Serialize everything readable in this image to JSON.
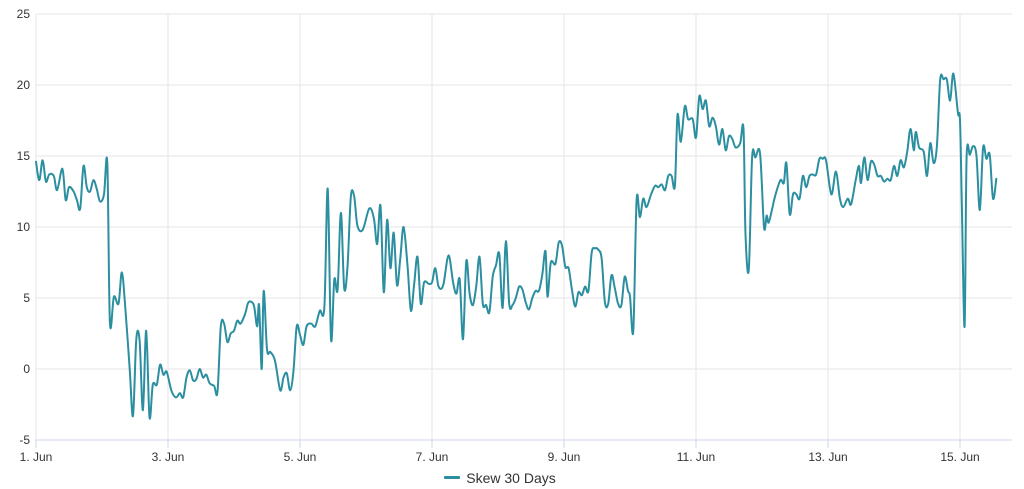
{
  "chart_data": {
    "type": "line",
    "title": "",
    "xlabel": "",
    "ylabel": "",
    "ylim": [
      -5,
      25
    ],
    "yticks": [
      -5,
      0,
      5,
      10,
      15,
      20,
      25
    ],
    "xticks": [
      "1. Jun",
      "3. Jun",
      "5. Jun",
      "7. Jun",
      "9. Jun",
      "11. Jun",
      "13. Jun",
      "15. Jun"
    ],
    "x_range_days": [
      1,
      15.8
    ],
    "grid": true,
    "legend_position": "bottom-center",
    "series": [
      {
        "name": "Skew 30 Days",
        "color": "#2b8fa0",
        "points": [
          [
            1.0,
            14.6
          ],
          [
            1.05,
            13.3
          ],
          [
            1.1,
            14.7
          ],
          [
            1.15,
            13.2
          ],
          [
            1.2,
            13.7
          ],
          [
            1.27,
            13.6
          ],
          [
            1.32,
            12.6
          ],
          [
            1.4,
            14.1
          ],
          [
            1.45,
            11.9
          ],
          [
            1.5,
            12.8
          ],
          [
            1.57,
            12.5
          ],
          [
            1.62,
            11.9
          ],
          [
            1.67,
            11.3
          ],
          [
            1.72,
            14.3
          ],
          [
            1.77,
            12.8
          ],
          [
            1.82,
            12.5
          ],
          [
            1.87,
            13.3
          ],
          [
            1.92,
            12.7
          ],
          [
            1.97,
            11.8
          ],
          [
            2.03,
            12.3
          ],
          [
            2.08,
            14.5
          ],
          [
            2.12,
            3.3
          ],
          [
            2.18,
            5.1
          ],
          [
            2.25,
            4.6
          ],
          [
            2.3,
            6.8
          ],
          [
            2.35,
            4.5
          ],
          [
            2.42,
            0.0
          ],
          [
            2.47,
            -3.3
          ],
          [
            2.52,
            2.1
          ],
          [
            2.57,
            2.0
          ],
          [
            2.62,
            -2.9
          ],
          [
            2.67,
            2.7
          ],
          [
            2.72,
            -3.4
          ],
          [
            2.77,
            -1.1
          ],
          [
            2.83,
            -1.1
          ],
          [
            2.88,
            0.3
          ],
          [
            2.93,
            -0.4
          ],
          [
            2.98,
            -0.2
          ],
          [
            3.05,
            -1.5
          ],
          [
            3.12,
            -2.0
          ],
          [
            3.18,
            -1.7
          ],
          [
            3.23,
            -2.0
          ],
          [
            3.28,
            -0.6
          ],
          [
            3.33,
            -0.1
          ],
          [
            3.38,
            -0.8
          ],
          [
            3.43,
            -0.7
          ],
          [
            3.48,
            0.0
          ],
          [
            3.53,
            -0.6
          ],
          [
            3.58,
            -0.4
          ],
          [
            3.63,
            -1.0
          ],
          [
            3.7,
            -1.2
          ],
          [
            3.75,
            -1.6
          ],
          [
            3.8,
            3.0
          ],
          [
            3.85,
            3.2
          ],
          [
            3.9,
            1.9
          ],
          [
            3.95,
            2.5
          ],
          [
            4.0,
            2.7
          ],
          [
            4.05,
            3.4
          ],
          [
            4.1,
            3.2
          ],
          [
            4.17,
            3.9
          ],
          [
            4.22,
            4.7
          ],
          [
            4.3,
            4.5
          ],
          [
            4.35,
            3.0
          ],
          [
            4.38,
            4.5
          ],
          [
            4.42,
            0.0
          ],
          [
            4.45,
            5.5
          ],
          [
            4.5,
            1.4
          ],
          [
            4.55,
            1.2
          ],
          [
            4.62,
            0.6
          ],
          [
            4.7,
            -1.5
          ],
          [
            4.75,
            -0.6
          ],
          [
            4.8,
            -0.3
          ],
          [
            4.85,
            -1.5
          ],
          [
            4.9,
            -0.2
          ],
          [
            4.95,
            3.0
          ],
          [
            5.0,
            2.4
          ],
          [
            5.05,
            1.7
          ],
          [
            5.1,
            3.0
          ],
          [
            5.17,
            3.2
          ],
          [
            5.23,
            3.0
          ],
          [
            5.3,
            4.1
          ],
          [
            5.37,
            4.4
          ],
          [
            5.42,
            12.7
          ],
          [
            5.47,
            2.1
          ],
          [
            5.52,
            6.3
          ],
          [
            5.57,
            5.6
          ],
          [
            5.62,
            11.0
          ],
          [
            5.67,
            5.7
          ],
          [
            5.72,
            7.2
          ],
          [
            5.77,
            12.1
          ],
          [
            5.82,
            12.2
          ],
          [
            5.87,
            10.1
          ],
          [
            5.95,
            9.8
          ],
          [
            6.05,
            11.3
          ],
          [
            6.12,
            10.6
          ],
          [
            6.17,
            8.8
          ],
          [
            6.22,
            11.5
          ],
          [
            6.27,
            5.4
          ],
          [
            6.32,
            10.5
          ],
          [
            6.37,
            7.1
          ],
          [
            6.42,
            9.6
          ],
          [
            6.47,
            5.9
          ],
          [
            6.52,
            7.8
          ],
          [
            6.57,
            10.0
          ],
          [
            6.63,
            7.2
          ],
          [
            6.68,
            4.1
          ],
          [
            6.73,
            6.0
          ],
          [
            6.78,
            7.9
          ],
          [
            6.83,
            4.6
          ],
          [
            6.88,
            6.1
          ],
          [
            6.95,
            6.0
          ],
          [
            7.0,
            6.1
          ],
          [
            7.05,
            7.1
          ],
          [
            7.1,
            5.8
          ],
          [
            7.17,
            5.9
          ],
          [
            7.25,
            8.0
          ],
          [
            7.32,
            6.1
          ],
          [
            7.37,
            5.3
          ],
          [
            7.42,
            6.3
          ],
          [
            7.47,
            2.1
          ],
          [
            7.52,
            7.6
          ],
          [
            7.57,
            5.3
          ],
          [
            7.62,
            4.5
          ],
          [
            7.67,
            5.8
          ],
          [
            7.72,
            7.9
          ],
          [
            7.77,
            4.6
          ],
          [
            7.82,
            4.5
          ],
          [
            7.87,
            4.0
          ],
          [
            7.92,
            6.5
          ],
          [
            7.97,
            7.3
          ],
          [
            8.02,
            8.1
          ],
          [
            8.07,
            4.3
          ],
          [
            8.12,
            9.0
          ],
          [
            8.17,
            4.6
          ],
          [
            8.22,
            4.5
          ],
          [
            8.27,
            5.0
          ],
          [
            8.32,
            5.8
          ],
          [
            8.37,
            5.6
          ],
          [
            8.42,
            4.7
          ],
          [
            8.47,
            4.2
          ],
          [
            8.52,
            5.0
          ],
          [
            8.57,
            5.5
          ],
          [
            8.62,
            5.5
          ],
          [
            8.67,
            6.6
          ],
          [
            8.72,
            8.3
          ],
          [
            8.75,
            5.1
          ],
          [
            8.8,
            7.5
          ],
          [
            8.87,
            7.4
          ],
          [
            8.92,
            8.9
          ],
          [
            8.97,
            8.7
          ],
          [
            9.02,
            7.2
          ],
          [
            9.07,
            7.1
          ],
          [
            9.12,
            5.6
          ],
          [
            9.17,
            4.4
          ],
          [
            9.22,
            5.4
          ],
          [
            9.27,
            5.2
          ],
          [
            9.32,
            5.8
          ],
          [
            9.37,
            5.5
          ],
          [
            9.42,
            8.2
          ],
          [
            9.47,
            8.5
          ],
          [
            9.52,
            8.4
          ],
          [
            9.57,
            7.8
          ],
          [
            9.62,
            4.7
          ],
          [
            9.67,
            4.6
          ],
          [
            9.72,
            6.6
          ],
          [
            9.77,
            5.7
          ],
          [
            9.82,
            4.6
          ],
          [
            9.87,
            4.5
          ],
          [
            9.92,
            6.5
          ],
          [
            9.97,
            5.5
          ],
          [
            10.0,
            5.1
          ],
          [
            10.05,
            2.7
          ],
          [
            10.1,
            11.9
          ],
          [
            10.15,
            10.7
          ],
          [
            10.2,
            12.0
          ],
          [
            10.25,
            11.4
          ],
          [
            10.32,
            12.3
          ],
          [
            10.38,
            12.9
          ],
          [
            10.43,
            12.8
          ],
          [
            10.48,
            13.0
          ],
          [
            10.53,
            12.6
          ],
          [
            10.58,
            13.6
          ],
          [
            10.63,
            13.6
          ],
          [
            10.68,
            12.9
          ],
          [
            10.72,
            17.9
          ],
          [
            10.77,
            16.0
          ],
          [
            10.83,
            18.5
          ],
          [
            10.88,
            17.6
          ],
          [
            10.95,
            17.6
          ],
          [
            11.0,
            16.3
          ],
          [
            11.05,
            19.2
          ],
          [
            11.1,
            18.3
          ],
          [
            11.15,
            18.9
          ],
          [
            11.2,
            17.1
          ],
          [
            11.25,
            17.7
          ],
          [
            11.3,
            17.1
          ],
          [
            11.35,
            15.8
          ],
          [
            11.4,
            16.9
          ],
          [
            11.45,
            15.4
          ],
          [
            11.5,
            16.4
          ],
          [
            11.55,
            16.2
          ],
          [
            11.6,
            15.6
          ],
          [
            11.67,
            15.9
          ],
          [
            11.72,
            16.9
          ],
          [
            11.75,
            9.5
          ],
          [
            11.8,
            7.0
          ],
          [
            11.85,
            14.9
          ],
          [
            11.9,
            14.9
          ],
          [
            11.97,
            15.2
          ],
          [
            12.03,
            10.0
          ],
          [
            12.07,
            10.8
          ],
          [
            12.1,
            10.3
          ],
          [
            12.15,
            11.2
          ],
          [
            12.2,
            12.2
          ],
          [
            12.28,
            13.3
          ],
          [
            12.33,
            13.1
          ],
          [
            12.37,
            14.5
          ],
          [
            12.42,
            10.9
          ],
          [
            12.47,
            12.3
          ],
          [
            12.52,
            12.3
          ],
          [
            12.57,
            12.0
          ],
          [
            12.62,
            13.6
          ],
          [
            12.67,
            12.8
          ],
          [
            12.72,
            13.6
          ],
          [
            12.77,
            13.7
          ],
          [
            12.82,
            13.7
          ],
          [
            12.87,
            14.8
          ],
          [
            12.92,
            14.8
          ],
          [
            12.97,
            14.7
          ],
          [
            13.05,
            12.3
          ],
          [
            13.12,
            13.9
          ],
          [
            13.18,
            12.0
          ],
          [
            13.23,
            11.4
          ],
          [
            13.3,
            12.0
          ],
          [
            13.35,
            11.6
          ],
          [
            13.42,
            13.3
          ],
          [
            13.47,
            14.3
          ],
          [
            13.5,
            13.1
          ],
          [
            13.55,
            14.9
          ],
          [
            13.6,
            13.3
          ],
          [
            13.65,
            14.6
          ],
          [
            13.7,
            14.4
          ],
          [
            13.75,
            13.6
          ],
          [
            13.8,
            13.6
          ],
          [
            13.85,
            13.2
          ],
          [
            13.9,
            13.4
          ],
          [
            13.95,
            13.3
          ],
          [
            14.0,
            14.3
          ],
          [
            14.05,
            13.6
          ],
          [
            14.1,
            14.7
          ],
          [
            14.15,
            14.2
          ],
          [
            14.2,
            15.3
          ],
          [
            14.25,
            16.9
          ],
          [
            14.3,
            15.4
          ],
          [
            14.33,
            16.7
          ],
          [
            14.38,
            15.6
          ],
          [
            14.45,
            15.3
          ],
          [
            14.5,
            13.6
          ],
          [
            14.55,
            15.9
          ],
          [
            14.6,
            14.5
          ],
          [
            14.65,
            15.7
          ],
          [
            14.7,
            20.4
          ],
          [
            14.75,
            20.4
          ],
          [
            14.8,
            20.4
          ],
          [
            14.85,
            18.9
          ],
          [
            14.9,
            20.8
          ],
          [
            14.97,
            18.0
          ],
          [
            15.0,
            17.5
          ],
          [
            15.03,
            11.0
          ],
          [
            15.07,
            3.0
          ],
          [
            15.1,
            14.9
          ],
          [
            15.15,
            15.1
          ],
          [
            15.2,
            15.7
          ],
          [
            15.25,
            15.0
          ],
          [
            15.3,
            11.2
          ],
          [
            15.35,
            15.6
          ],
          [
            15.4,
            14.8
          ],
          [
            15.45,
            15.1
          ],
          [
            15.5,
            12.0
          ],
          [
            15.55,
            13.4
          ]
        ]
      }
    ]
  },
  "legend": {
    "items": [
      {
        "label": "Skew 30 Days",
        "color": "#2b8fa0"
      }
    ]
  }
}
